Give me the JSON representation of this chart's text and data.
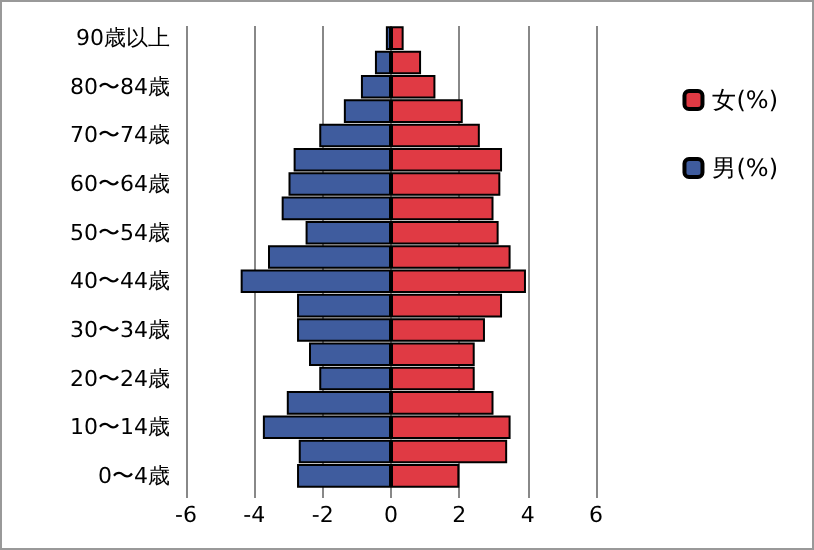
{
  "chart_data": {
    "type": "bar",
    "orientation": "horizontal",
    "stacked": true,
    "categories": [
      "90歳以上",
      null,
      "80〜84歳",
      null,
      "70〜74歳",
      null,
      "60〜64歳",
      null,
      "50〜54歳",
      null,
      "40〜44歳",
      null,
      "30〜34歳",
      null,
      "20〜24歳",
      null,
      "10〜14歳",
      null,
      "0〜4歳"
    ],
    "series": [
      {
        "name": "女(%)",
        "color": "#e03a44",
        "values": [
          0.37,
          0.88,
          1.3,
          2.1,
          2.6,
          3.25,
          3.2,
          3.0,
          3.15,
          3.5,
          3.95,
          3.25,
          2.75,
          2.45,
          2.45,
          3.0,
          3.5,
          3.4,
          2.0
        ]
      },
      {
        "name": "男(%)",
        "color": "#3f5c9e",
        "values": [
          -0.15,
          -0.47,
          -0.88,
          -1.38,
          -2.1,
          -2.85,
          -3.0,
          -3.2,
          -2.5,
          -3.6,
          -4.4,
          -2.75,
          -2.75,
          -2.4,
          -2.1,
          -3.05,
          -3.75,
          -2.7,
          -2.75
        ]
      }
    ],
    "xlim": [
      -6,
      6
    ],
    "xticks": [
      -6,
      -4,
      -2,
      0,
      2,
      4,
      6
    ],
    "grid": "x",
    "legend": "right"
  }
}
